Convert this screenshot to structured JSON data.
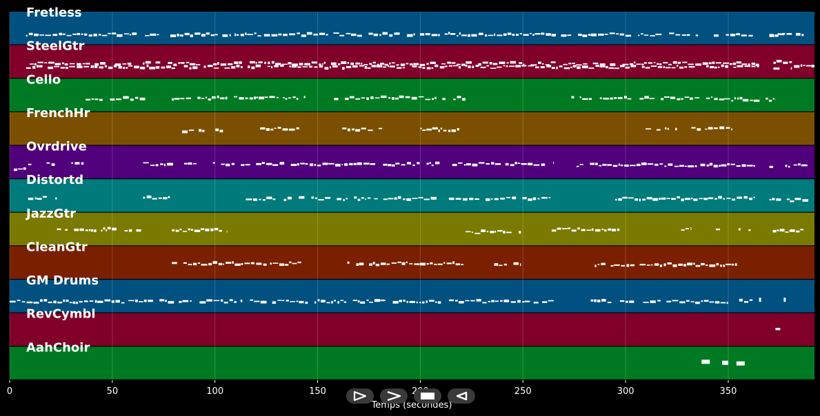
{
  "chart_data": {
    "type": "piano-roll",
    "xlabel": "Temps (secondes)",
    "xlim": [
      0,
      392
    ],
    "xticks": [
      0,
      50,
      100,
      150,
      200,
      250,
      300,
      350
    ],
    "grid": true,
    "tracks": [
      {
        "name": "Fretless",
        "color": "#005080",
        "segments": [
          [
            8,
            362,
            0.68
          ],
          [
            370,
            379,
            0.72
          ],
          [
            370,
            387,
            0.7
          ]
        ]
      },
      {
        "name": "SteelGtr",
        "color": "#80002a",
        "segments": [
          [
            8,
            365,
            0.55
          ],
          [
            8,
            365,
            0.65
          ],
          [
            372,
            381,
            0.5
          ],
          [
            372,
            381,
            0.68
          ],
          [
            382,
            392,
            0.6
          ]
        ]
      },
      {
        "name": "Cello",
        "color": "#007a22",
        "segments": [
          [
            37,
            66,
            0.6
          ],
          [
            79,
            144,
            0.58
          ],
          [
            158,
            222,
            0.58
          ],
          [
            270,
            348,
            0.58
          ],
          [
            348,
            373,
            0.62
          ]
        ]
      },
      {
        "name": "FrenchHr",
        "color": "#7a5000",
        "segments": [
          [
            84,
            104,
            0.55
          ],
          [
            122,
            141,
            0.5
          ],
          [
            162,
            182,
            0.52
          ],
          [
            200,
            219,
            0.52
          ],
          [
            305,
            325,
            0.5
          ],
          [
            332,
            352,
            0.5
          ]
        ]
      },
      {
        "name": "Ovrdrive",
        "color": "#50007a",
        "segments": [
          [
            2,
            8,
            0.72
          ],
          [
            9,
            22,
            0.55
          ],
          [
            30,
            36,
            0.55
          ],
          [
            65,
            80,
            0.55
          ],
          [
            85,
            91,
            0.55
          ],
          [
            99,
            265,
            0.55
          ],
          [
            276,
            363,
            0.58
          ],
          [
            370,
            380,
            0.62
          ],
          [
            380,
            389,
            0.6
          ]
        ]
      },
      {
        "name": "Distortd",
        "color": "#007a7a",
        "segments": [
          [
            9,
            23,
            0.55
          ],
          [
            65,
            78,
            0.55
          ],
          [
            115,
            264,
            0.58
          ],
          [
            295,
            363,
            0.58
          ],
          [
            370,
            380,
            0.62
          ],
          [
            380,
            389,
            0.62
          ]
        ]
      },
      {
        "name": "JazzGtr",
        "color": "#7a7a00",
        "segments": [
          [
            23,
            64,
            0.5
          ],
          [
            79,
            106,
            0.52
          ],
          [
            222,
            249,
            0.58
          ],
          [
            264,
            297,
            0.5
          ],
          [
            327,
            332,
            0.5
          ],
          [
            341,
            346,
            0.5
          ],
          [
            355,
            361,
            0.5
          ],
          [
            370,
            380,
            0.55
          ],
          [
            380,
            389,
            0.52
          ]
        ]
      },
      {
        "name": "CleanGtr",
        "color": "#7a2000",
        "segments": [
          [
            79,
            142,
            0.52
          ],
          [
            158,
            221,
            0.52
          ],
          [
            236,
            249,
            0.55
          ],
          [
            285,
            355,
            0.55
          ]
        ]
      },
      {
        "name": "GM Drums",
        "color": "#005080",
        "segments": [
          [
            0,
            265,
            0.65
          ],
          [
            283,
            362,
            0.65
          ],
          [
            365,
            366,
            0.6
          ],
          [
            377,
            378,
            0.6
          ]
        ]
      },
      {
        "name": "RevCymbl",
        "color": "#80002a",
        "segments": [
          [
            373,
            378,
            0.48
          ]
        ]
      },
      {
        "name": "AahChoir",
        "color": "#007a22",
        "segments": [
          [
            337,
            341,
            0.45
          ],
          [
            347,
            350,
            0.48
          ],
          [
            354,
            358,
            0.5
          ]
        ]
      }
    ]
  },
  "controls": [
    {
      "name": "play-button",
      "icon": "play-icon"
    },
    {
      "name": "forward-button",
      "icon": "chevron-right-icon"
    },
    {
      "name": "stop-button",
      "icon": "stop-icon"
    },
    {
      "name": "rewind-button",
      "icon": "rewind-icon"
    }
  ]
}
